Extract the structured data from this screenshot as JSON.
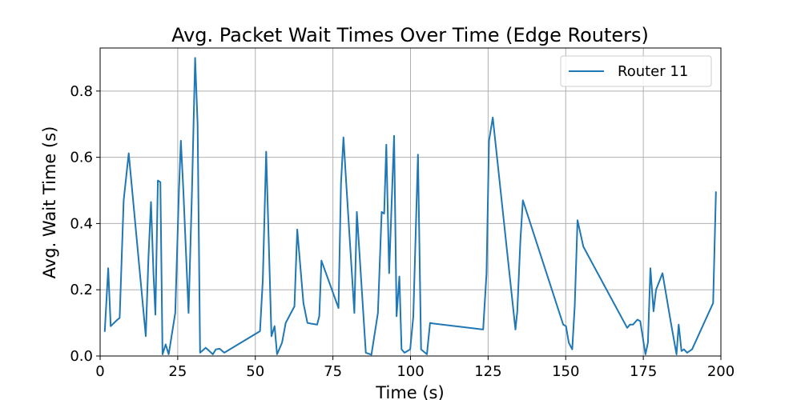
{
  "chart_data": {
    "type": "line",
    "title": "Avg. Packet Wait Times Over Time (Edge Routers)",
    "xlabel": "Time (s)",
    "ylabel": "Avg. Wait Time (s)",
    "xlim": [
      0,
      200
    ],
    "ylim": [
      0,
      0.93
    ],
    "xticks": [
      0,
      25,
      50,
      75,
      100,
      125,
      150,
      175,
      200
    ],
    "yticks": [
      0.0,
      0.2,
      0.4,
      0.6,
      0.8
    ],
    "grid": true,
    "legend_position": "top-right",
    "colors": {
      "series": "#1f77b4"
    },
    "series": [
      {
        "name": "Router 11",
        "x": [
          1.5,
          2.6,
          3.4,
          5.6,
          6.3,
          6.9,
          7.6,
          9.2,
          14.7,
          15.6,
          16.4,
          17.2,
          17.8,
          18.6,
          19.4,
          20.1,
          21.1,
          22.1,
          24.2,
          25.4,
          26.0,
          26.8,
          28.5,
          29.6,
          30.6,
          31.4,
          32.2,
          34.0,
          35.2,
          36.3,
          37.3,
          38.5,
          40.0,
          51.5,
          52.4,
          53.5,
          55.2,
          56.2,
          57.0,
          58.6,
          59.8,
          62.6,
          63.5,
          65.5,
          66.8,
          68.3,
          69.9,
          70.6,
          71.3,
          76.8,
          77.6,
          78.4,
          79.3,
          81.9,
          82.7,
          85.6,
          87.4,
          89.5,
          90.7,
          91.5,
          92.2,
          93.1,
          94.7,
          95.5,
          96.4,
          97.1,
          98.1,
          99.9,
          100.9,
          102.4,
          103.4,
          105.3,
          106.3,
          107.3,
          123.4,
          124.5,
          125.3,
          126.5,
          133.8,
          134.4,
          135.4,
          136.2,
          149.2,
          150.1,
          151.0,
          152.1,
          152.9,
          153.8,
          155.7,
          169.8,
          170.7,
          171.7,
          173.1,
          174.0,
          175.7,
          176.5,
          177.3,
          178.3,
          179.1,
          181.2,
          183.9,
          185.7,
          186.4,
          187.3,
          188.1,
          189.1,
          190.7,
          197.5,
          198.4
        ],
        "values": [
          0.075,
          0.265,
          0.09,
          0.11,
          0.115,
          0.28,
          0.47,
          0.612,
          0.06,
          0.3,
          0.465,
          0.25,
          0.125,
          0.53,
          0.525,
          0.005,
          0.035,
          0.005,
          0.13,
          0.5,
          0.65,
          0.5,
          0.13,
          0.5,
          0.9,
          0.7,
          0.01,
          0.025,
          0.015,
          0.005,
          0.02,
          0.022,
          0.01,
          0.075,
          0.23,
          0.617,
          0.06,
          0.09,
          0.005,
          0.04,
          0.1,
          0.15,
          0.382,
          0.16,
          0.1,
          0.097,
          0.095,
          0.12,
          0.288,
          0.145,
          0.52,
          0.66,
          0.52,
          0.13,
          0.435,
          0.01,
          0.004,
          0.13,
          0.435,
          0.43,
          0.638,
          0.25,
          0.665,
          0.12,
          0.24,
          0.02,
          0.01,
          0.02,
          0.12,
          0.608,
          0.02,
          0.005,
          0.1,
          0.098,
          0.08,
          0.25,
          0.65,
          0.72,
          0.08,
          0.135,
          0.35,
          0.47,
          0.095,
          0.09,
          0.04,
          0.02,
          0.15,
          0.41,
          0.33,
          0.085,
          0.095,
          0.095,
          0.11,
          0.105,
          0.005,
          0.04,
          0.265,
          0.135,
          0.2,
          0.25,
          0.1,
          0.005,
          0.095,
          0.015,
          0.02,
          0.01,
          0.02,
          0.16,
          0.495
        ]
      }
    ]
  }
}
